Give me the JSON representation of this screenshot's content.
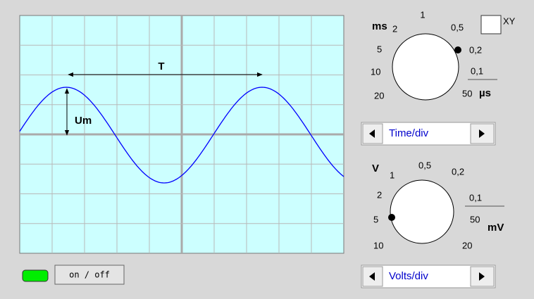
{
  "screen": {
    "period_label": "T",
    "amplitude_label": "Um"
  },
  "time_dial": {
    "unit_top": "ms",
    "labels": [
      "2",
      "1",
      "0,5",
      "0,2",
      "0,1",
      "50",
      "20",
      "10",
      "5"
    ],
    "unit_bottom": "µs",
    "caption": "Time/div"
  },
  "xy": "XY",
  "volts_dial": {
    "unit_top": "V",
    "labels": [
      "1",
      "0,5",
      "0,2",
      "0,1",
      "50",
      "20",
      "10",
      "5",
      "2"
    ],
    "unit_bottom": "mV",
    "caption": "Volts/div"
  },
  "power": "on / off"
}
